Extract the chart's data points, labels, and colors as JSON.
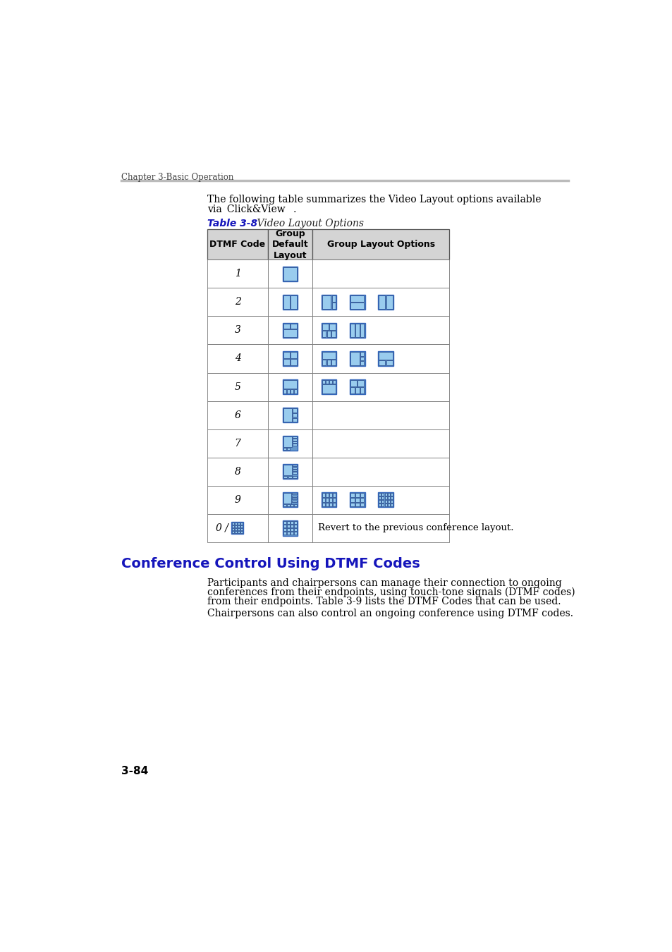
{
  "background_color": "#ffffff",
  "page_header": "Chapter 3-Basic Operation",
  "header_line_color": "#bbbbbb",
  "intro_line1": "The following table summarizes the Video Layout options available",
  "intro_line2": "via  Click&View   .",
  "table_label": "Table 3-8",
  "table_title": "    Video Layout Options",
  "table_header_bg": "#d4d4d4",
  "table_border_color": "#444444",
  "col_headers": [
    "DTMF Code",
    "Group\nDefault\nLayout",
    "Group Layout Options"
  ],
  "row_labels": [
    "1",
    "2",
    "3",
    "4",
    "5",
    "6",
    "7",
    "8",
    "9",
    "0 /"
  ],
  "section_title": "Conference Control Using DTMF Codes",
  "section_title_color": "#1515bb",
  "body_text_1a": "Participants and chairpersons can manage their connection to ongoing",
  "body_text_1b": "conferences from their endpoints, using touch-tone signals (DTMF codes)",
  "body_text_1c": "from their endpoints. Table 3-9 lists the DTMF Codes that can be used.",
  "body_text_2": "Chairpersons can also control an ongoing conference using DTMF codes.",
  "page_number": "3-84",
  "icon_outer_color": "#3366bb",
  "icon_fill_color": "#6699cc",
  "icon_cell_color": "#99ccee",
  "icon_line_color": "#224488"
}
